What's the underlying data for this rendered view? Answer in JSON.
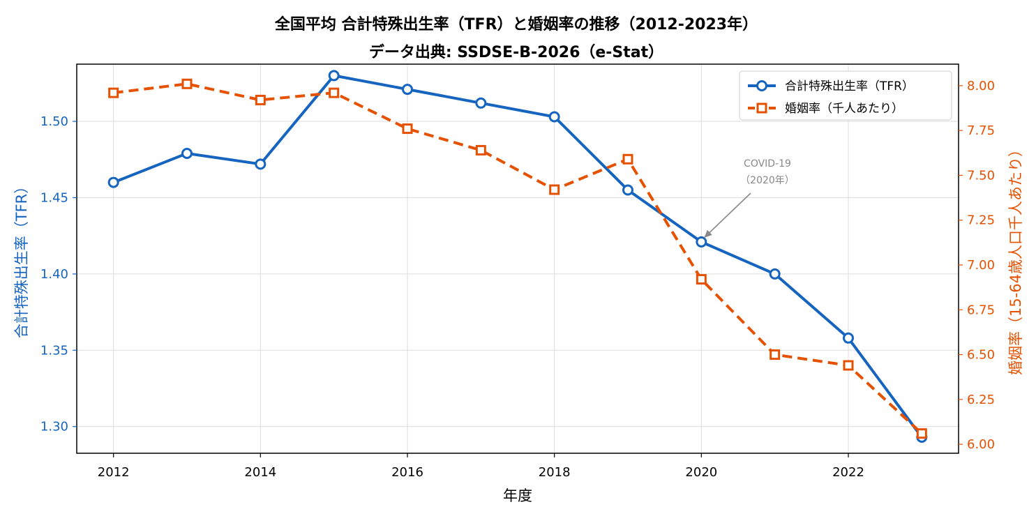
{
  "chart_data": {
    "type": "line",
    "title": "全国平均 合計特殊出生率（TFR）と婚姻率の推移（2012-2023年）",
    "subtitle": "データ出典: SSDSE-B-2026（e-Stat）",
    "xlabel": "年度",
    "ylabel_left": "合計特殊出生率（TFR）",
    "ylabel_right": "婚姻率（15-64歳人口千人あたり）",
    "x": [
      2012,
      2013,
      2014,
      2015,
      2016,
      2017,
      2018,
      2019,
      2020,
      2021,
      2022,
      2023
    ],
    "x_ticks": [
      "2012",
      "2014",
      "2016",
      "2018",
      "2020",
      "2022"
    ],
    "xlim": [
      2011.5,
      2023.5
    ],
    "y_left_ticks": [
      "1.30",
      "1.35",
      "1.40",
      "1.45",
      "1.50"
    ],
    "ylim_left": [
      1.2825,
      1.5375
    ],
    "y_right_ticks": [
      "6.00",
      "6.25",
      "6.50",
      "6.75",
      "7.00",
      "7.25",
      "7.50",
      "7.75",
      "8.00"
    ],
    "ylim_right": [
      5.95,
      8.12
    ],
    "grid": true,
    "legend_position": "top-right",
    "series": [
      {
        "name": "合計特殊出生率（TFR）",
        "axis": "left",
        "color": "#1565c0",
        "style": "solid",
        "marker": "circle",
        "values": [
          1.46,
          1.479,
          1.472,
          1.53,
          1.521,
          1.512,
          1.503,
          1.455,
          1.421,
          1.4,
          1.358,
          1.293
        ]
      },
      {
        "name": "婚姻率（千人あたり）",
        "axis": "right",
        "color": "#e65100",
        "style": "dashed",
        "marker": "square",
        "values": [
          7.96,
          8.01,
          7.92,
          7.96,
          7.76,
          7.64,
          7.42,
          7.59,
          6.92,
          6.5,
          6.44,
          6.06
        ]
      }
    ],
    "annotations": [
      {
        "line1": "COVID-19",
        "line2": "（2020年）",
        "x": 2020,
        "y": 1.421,
        "axis": "left"
      }
    ]
  }
}
